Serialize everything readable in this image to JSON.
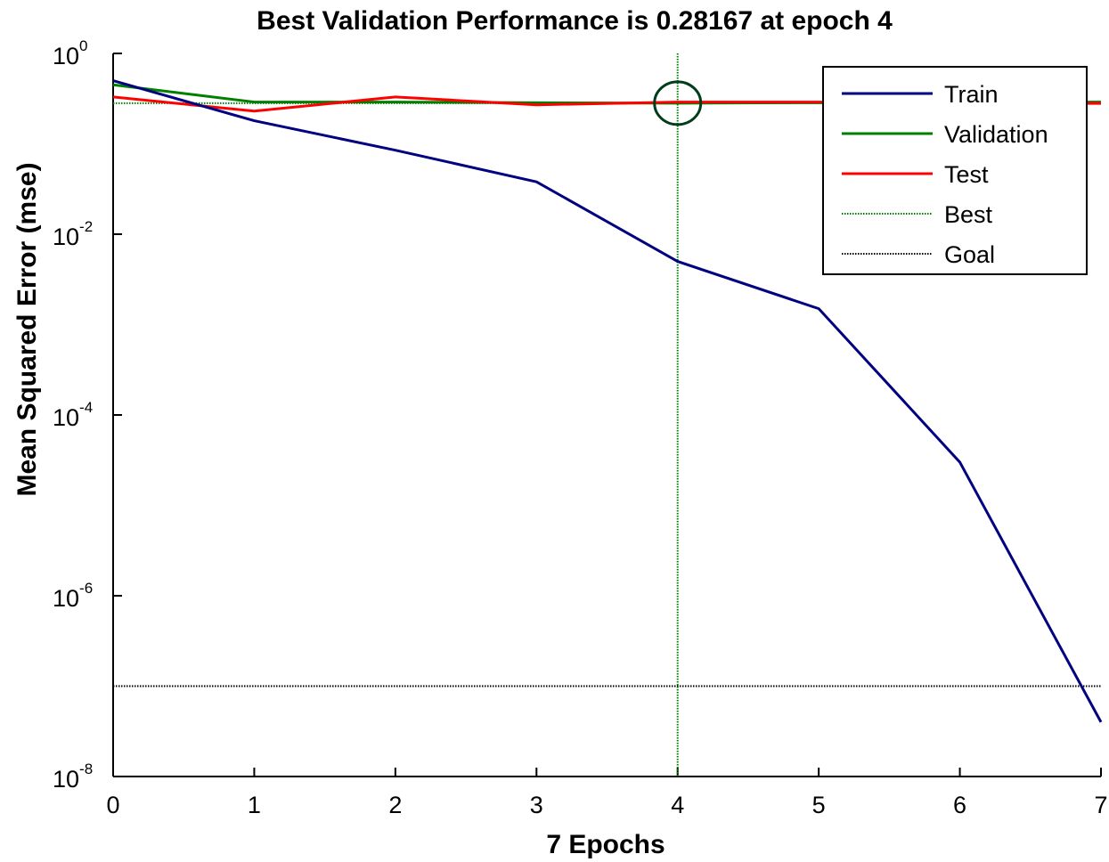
{
  "chart_data": {
    "type": "line",
    "title": "Best Validation Performance is 0.28167 at epoch 4",
    "xlabel": "7 Epochs",
    "ylabel": "Mean Squared Error  (mse)",
    "xlim": [
      0,
      7
    ],
    "ylim": [
      1e-08,
      1
    ],
    "yscale": "log",
    "xticks": [
      0,
      1,
      2,
      3,
      4,
      5,
      6,
      7
    ],
    "yticks": [
      {
        "base": "10",
        "exp": "0",
        "value": 1
      },
      {
        "base": "10",
        "exp": "-2",
        "value": 0.01
      },
      {
        "base": "10",
        "exp": "-4",
        "value": 0.0001
      },
      {
        "base": "10",
        "exp": "-6",
        "value": 1e-06
      },
      {
        "base": "10",
        "exp": "-8",
        "value": 1e-08
      }
    ],
    "series": [
      {
        "name": "Train",
        "color": "#000080",
        "x": [
          0,
          1,
          2,
          3,
          4,
          5,
          6,
          7
        ],
        "values": [
          0.5,
          0.18,
          0.085,
          0.038,
          0.005,
          0.0015,
          3e-05,
          4e-08
        ]
      },
      {
        "name": "Validation",
        "color": "#008000",
        "x": [
          0,
          1,
          2,
          3,
          4,
          5,
          6,
          7
        ],
        "values": [
          0.45,
          0.29,
          0.29,
          0.285,
          0.28167,
          0.285,
          0.29,
          0.29
        ]
      },
      {
        "name": "Test",
        "color": "#ff0000",
        "x": [
          0,
          1,
          2,
          3,
          4,
          5,
          6,
          7
        ],
        "values": [
          0.33,
          0.23,
          0.33,
          0.27,
          0.29,
          0.29,
          0.28,
          0.28
        ]
      }
    ],
    "best": {
      "name": "Best",
      "color": "#008000",
      "epoch": 4,
      "value": 0.28167
    },
    "goal": {
      "name": "Goal",
      "color": "#000000",
      "value": 1e-07
    },
    "legend": {
      "position": "top-right",
      "entries": [
        {
          "label": "Train",
          "color": "#000080",
          "style": "solid"
        },
        {
          "label": "Validation",
          "color": "#008000",
          "style": "solid"
        },
        {
          "label": "Test",
          "color": "#ff0000",
          "style": "solid"
        },
        {
          "label": "Best",
          "color": "#008000",
          "style": "dotted"
        },
        {
          "label": "Goal",
          "color": "#000000",
          "style": "dotted"
        }
      ]
    }
  }
}
